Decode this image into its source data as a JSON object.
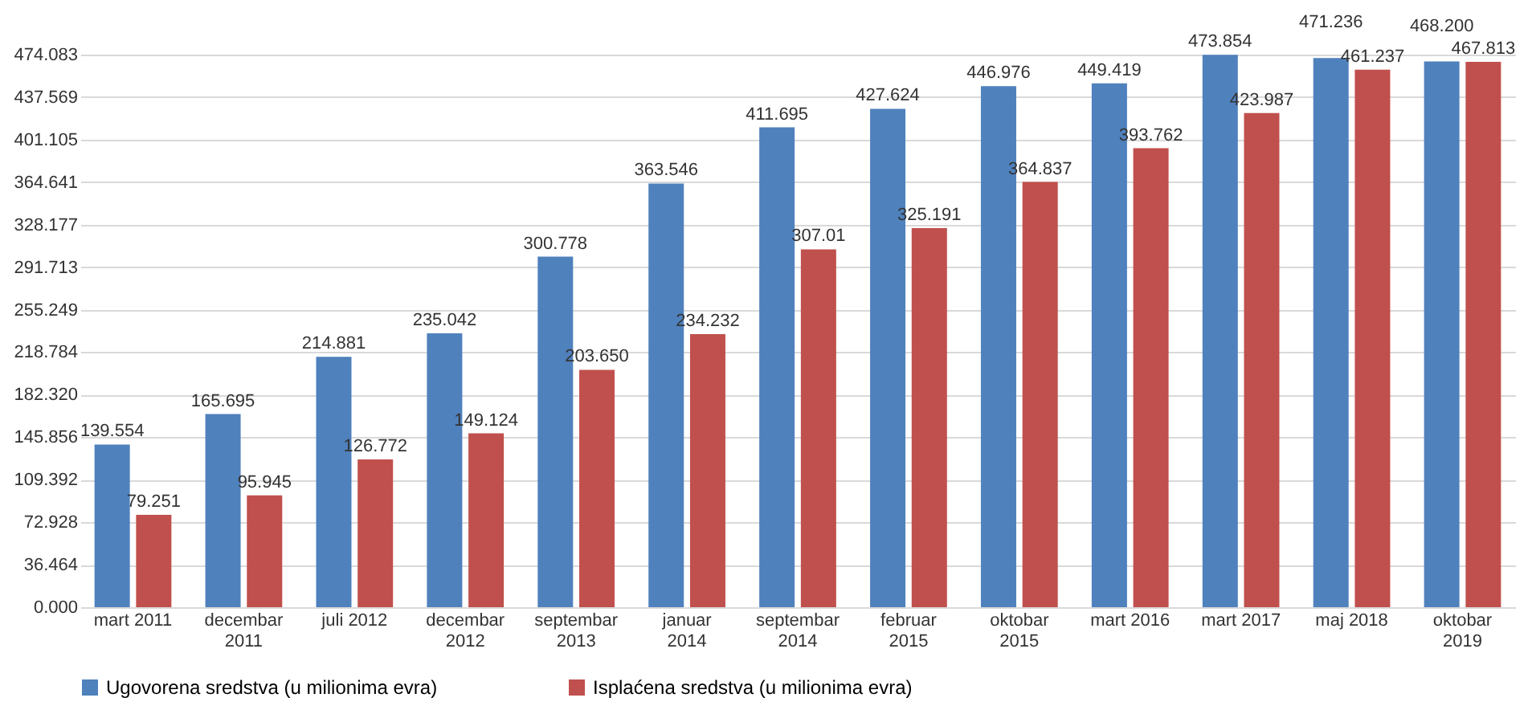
{
  "chart_data": {
    "type": "bar",
    "categories": [
      "mart 2011",
      "decembar 2011",
      "juli 2012",
      "decembar 2012",
      "septembar 2013",
      "januar 2014",
      "septembar 2014",
      "februar 2015",
      "oktobar 2015",
      "mart 2016",
      "mart 2017",
      "maj 2018",
      "oktobar 2019"
    ],
    "series": [
      {
        "name": "Ugovorena sredstva (u milionima evra)",
        "color": "#4f81bd",
        "values": [
          139.554,
          165.695,
          214.881,
          235.042,
          300.778,
          363.546,
          411.695,
          427.624,
          446.976,
          449.419,
          473.854,
          471.236,
          468.2
        ],
        "value_labels": [
          "139.554",
          "165.695",
          "214.881",
          "235.042",
          "300.778",
          "363.546",
          "411.695",
          "427.624",
          "446.976",
          "449.419",
          "473.854",
          "471.236",
          "468.200"
        ]
      },
      {
        "name": "Isplaćena sredstva (u milionima evra)",
        "color": "#c0504d",
        "values": [
          79.251,
          95.945,
          126.772,
          149.124,
          203.65,
          234.232,
          307.01,
          325.191,
          364.837,
          393.762,
          423.987,
          461.237,
          467.813
        ],
        "value_labels": [
          "79.251",
          "95.945",
          "126.772",
          "149.124",
          "203.650",
          "234.232",
          "307.01",
          "325.191",
          "364.837",
          "393.762",
          "423.987",
          "461.237",
          "467.813"
        ]
      }
    ],
    "ylim": [
      0,
      474.083
    ],
    "yticks": [
      {
        "value": 0,
        "label": "0.000"
      },
      {
        "value": 36.464,
        "label": "36.464"
      },
      {
        "value": 72.928,
        "label": "72.928"
      },
      {
        "value": 109.392,
        "label": "109.392"
      },
      {
        "value": 145.856,
        "label": "145.856"
      },
      {
        "value": 182.32,
        "label": "182.320"
      },
      {
        "value": 218.784,
        "label": "218.784"
      },
      {
        "value": 255.249,
        "label": "255.249"
      },
      {
        "value": 291.713,
        "label": "291.713"
      },
      {
        "value": 328.177,
        "label": "328.177"
      },
      {
        "value": 364.641,
        "label": "364.641"
      },
      {
        "value": 401.105,
        "label": "401.105"
      },
      {
        "value": 437.569,
        "label": "437.569"
      },
      {
        "value": 474.083,
        "label": "474.083"
      }
    ],
    "grid": "y",
    "legend": "bottom"
  }
}
